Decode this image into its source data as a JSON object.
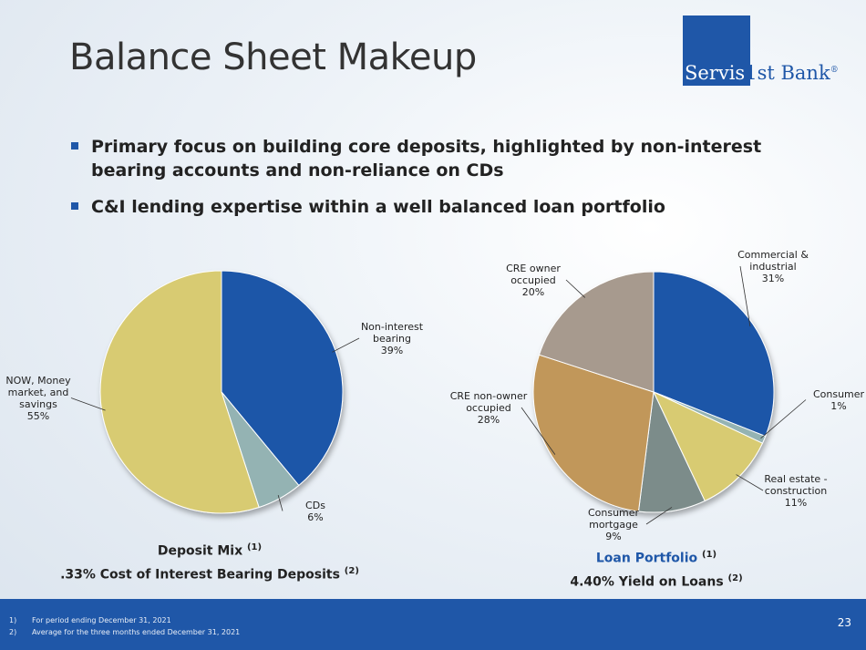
{
  "title": "Balance Sheet Makeup",
  "logo": {
    "word1": "Servis",
    "word2": "1st Bank",
    "reg": "®"
  },
  "bullets": [
    "Primary focus on building core deposits, highlighted by non-interest bearing accounts and non-reliance on CDs",
    "C&I lending expertise within a well balanced loan portfolio"
  ],
  "deposit_caption": {
    "line1": "Deposit Mix",
    "sup1": "(1)",
    "line2": ".33% Cost of Interest Bearing Deposits",
    "sup2": "(2)"
  },
  "loan_caption": {
    "line1": "Loan Portfolio",
    "sup1": "(1)",
    "line2": "4.40% Yield on Loans",
    "sup2": "(2)"
  },
  "footnotes": [
    {
      "num": "1)",
      "text": "For period ending December 31, 2021"
    },
    {
      "num": "2)",
      "text": "Average for the three months ended December 31, 2021"
    }
  ],
  "page_number": "23",
  "colors": {
    "brand_blue": "#1f57a8"
  },
  "chart_data": [
    {
      "type": "pie",
      "title": "Deposit Mix",
      "slices": [
        {
          "label": [
            "Non-interest",
            "bearing"
          ],
          "value": 39,
          "display": "39%",
          "color": "#1f57a8"
        },
        {
          "label": [
            "CDs"
          ],
          "value": 6,
          "display": "6%",
          "color": "#94b3b3"
        },
        {
          "label": [
            "NOW, Money",
            "market, and",
            "savings"
          ],
          "value": 55,
          "display": "55%",
          "color": "#d8cb72"
        }
      ]
    },
    {
      "type": "pie",
      "title": "Loan Portfolio",
      "slices": [
        {
          "label": [
            "Commercial &",
            "industrial"
          ],
          "value": 31,
          "display": "31%",
          "color": "#1f57a8"
        },
        {
          "label": [
            "Consumer"
          ],
          "value": 1,
          "display": "1%",
          "color": "#94b3b3"
        },
        {
          "label": [
            "Real estate -",
            "construction"
          ],
          "value": 11,
          "display": "11%",
          "color": "#d8cb72"
        },
        {
          "label": [
            "Consumer",
            "mortgage"
          ],
          "value": 9,
          "display": "9%",
          "color": "#7c8c8a"
        },
        {
          "label": [
            "CRE non-owner",
            "occupied"
          ],
          "value": 28,
          "display": "28%",
          "color": "#c1975a"
        },
        {
          "label": [
            "CRE owner",
            "occupied"
          ],
          "value": 20,
          "display": "20%",
          "color": "#a79a8e"
        }
      ]
    }
  ]
}
